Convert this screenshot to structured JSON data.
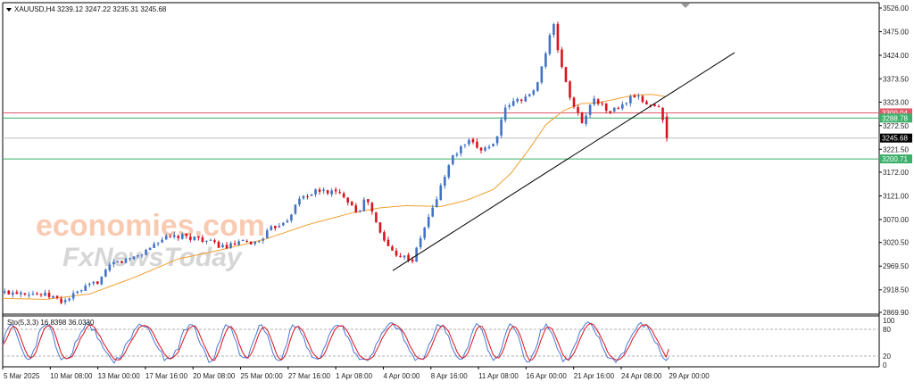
{
  "window": {
    "symbol_header": "XAUUSD,H4  3239.12 3247.22 3235.31 3245.68",
    "indicator_header": "Sto(5,3,3) 16.8398 36.0330",
    "watermark_line1": "economies.com",
    "watermark_line2": "FxNewsToday"
  },
  "colors": {
    "bull": "#4472c4",
    "bear": "#d9131e",
    "ma": "#f0a030",
    "trend": "#000000",
    "resistance": "#e05a6a",
    "support": "#3cb06a",
    "stoch_main": "#4a78d6",
    "stoch_signal": "#d9131e",
    "watermark_orange": "#f7b898",
    "watermark_grey": "#c8c8c8"
  },
  "chart_data": [
    {
      "type": "candlestick",
      "title": "XAUUSD,H4",
      "ylim": [
        2869.9,
        3526.0
      ],
      "y_ticks": [
        "3526.00",
        "3475.00",
        "3424.00",
        "3373.50",
        "3323.00",
        "3272.50",
        "3221.50",
        "3172.00",
        "3121.00",
        "3070.00",
        "3020.50",
        "2969.50",
        "2918.50",
        "2869.90"
      ],
      "x_ticks": [
        "5 Mar 2025",
        "10 Mar 08:00",
        "13 Mar 00:00",
        "17 Mar 16:00",
        "20 Mar 08:00",
        "25 Mar 00:00",
        "27 Mar 16:00",
        "1 Apr 08:00",
        "4 Apr 00:00",
        "8 Apr 16:00",
        "11 Apr 08:00",
        "16 Apr 00:00",
        "21 Apr 16:00",
        "24 Apr 08:00",
        "29 Apr 00:00"
      ],
      "last_price": {
        "label": "3245.68",
        "value": 3245.68
      },
      "levels": [
        {
          "name": "resistance",
          "label": "3300.04",
          "value": 3300.04,
          "color": "#e05a6a"
        },
        {
          "name": "resistance-2",
          "label": "3288.78",
          "value": 3288.78,
          "color": "#3cb06a"
        },
        {
          "name": "support",
          "label": "3200.71",
          "value": 3200.71,
          "color": "#3cb06a"
        }
      ],
      "trendline": [
        [
          0.445,
          2960
        ],
        [
          0.835,
          3430
        ]
      ],
      "anchors": [
        [
          0.0,
          2912
        ],
        [
          0.02,
          2915
        ],
        [
          0.04,
          2910
        ],
        [
          0.058,
          2903
        ],
        [
          0.068,
          2892
        ],
        [
          0.09,
          2918
        ],
        [
          0.11,
          2938
        ],
        [
          0.125,
          2975
        ],
        [
          0.14,
          2982
        ],
        [
          0.16,
          2998
        ],
        [
          0.18,
          3028
        ],
        [
          0.2,
          3033
        ],
        [
          0.225,
          3030
        ],
        [
          0.24,
          3018
        ],
        [
          0.255,
          3010
        ],
        [
          0.27,
          3020
        ],
        [
          0.29,
          3020
        ],
        [
          0.305,
          3048
        ],
        [
          0.325,
          3072
        ],
        [
          0.34,
          3118
        ],
        [
          0.36,
          3132
        ],
        [
          0.375,
          3130
        ],
        [
          0.39,
          3122
        ],
        [
          0.405,
          3085
        ],
        [
          0.415,
          3118
        ],
        [
          0.43,
          3042
        ],
        [
          0.442,
          3005
        ],
        [
          0.455,
          2992
        ],
        [
          0.468,
          2982
        ],
        [
          0.48,
          3048
        ],
        [
          0.492,
          3100
        ],
        [
          0.5,
          3142
        ],
        [
          0.512,
          3202
        ],
        [
          0.53,
          3238
        ],
        [
          0.545,
          3222
        ],
        [
          0.56,
          3232
        ],
        [
          0.575,
          3315
        ],
        [
          0.59,
          3330
        ],
        [
          0.605,
          3340
        ],
        [
          0.618,
          3418
        ],
        [
          0.628,
          3494
        ],
        [
          0.635,
          3420
        ],
        [
          0.65,
          3315
        ],
        [
          0.662,
          3280
        ],
        [
          0.675,
          3335
        ],
        [
          0.69,
          3302
        ],
        [
          0.705,
          3312
        ],
        [
          0.72,
          3338
        ],
        [
          0.735,
          3320
        ],
        [
          0.748,
          3312
        ],
        [
          0.76,
          3248
        ]
      ],
      "ma": [
        [
          0.0,
          2900
        ],
        [
          0.05,
          2898
        ],
        [
          0.1,
          2910
        ],
        [
          0.15,
          2945
        ],
        [
          0.2,
          2985
        ],
        [
          0.25,
          3005
        ],
        [
          0.3,
          3028
        ],
        [
          0.35,
          3060
        ],
        [
          0.4,
          3085
        ],
        [
          0.43,
          3095
        ],
        [
          0.46,
          3100
        ],
        [
          0.5,
          3098
        ],
        [
          0.53,
          3112
        ],
        [
          0.56,
          3135
        ],
        [
          0.58,
          3170
        ],
        [
          0.6,
          3220
        ],
        [
          0.62,
          3275
        ],
        [
          0.64,
          3305
        ],
        [
          0.66,
          3320
        ],
        [
          0.68,
          3322
        ],
        [
          0.7,
          3330
        ],
        [
          0.72,
          3338
        ],
        [
          0.74,
          3340
        ],
        [
          0.76,
          3334
        ]
      ]
    },
    {
      "type": "line",
      "title": "Sto(5,3,3)",
      "ylim": [
        0,
        100
      ],
      "y_ticks": [
        "100",
        "80",
        "20",
        "0"
      ],
      "series": [
        {
          "name": "main",
          "last": 16.8398
        },
        {
          "name": "signal",
          "last": 36.033
        }
      ]
    }
  ]
}
